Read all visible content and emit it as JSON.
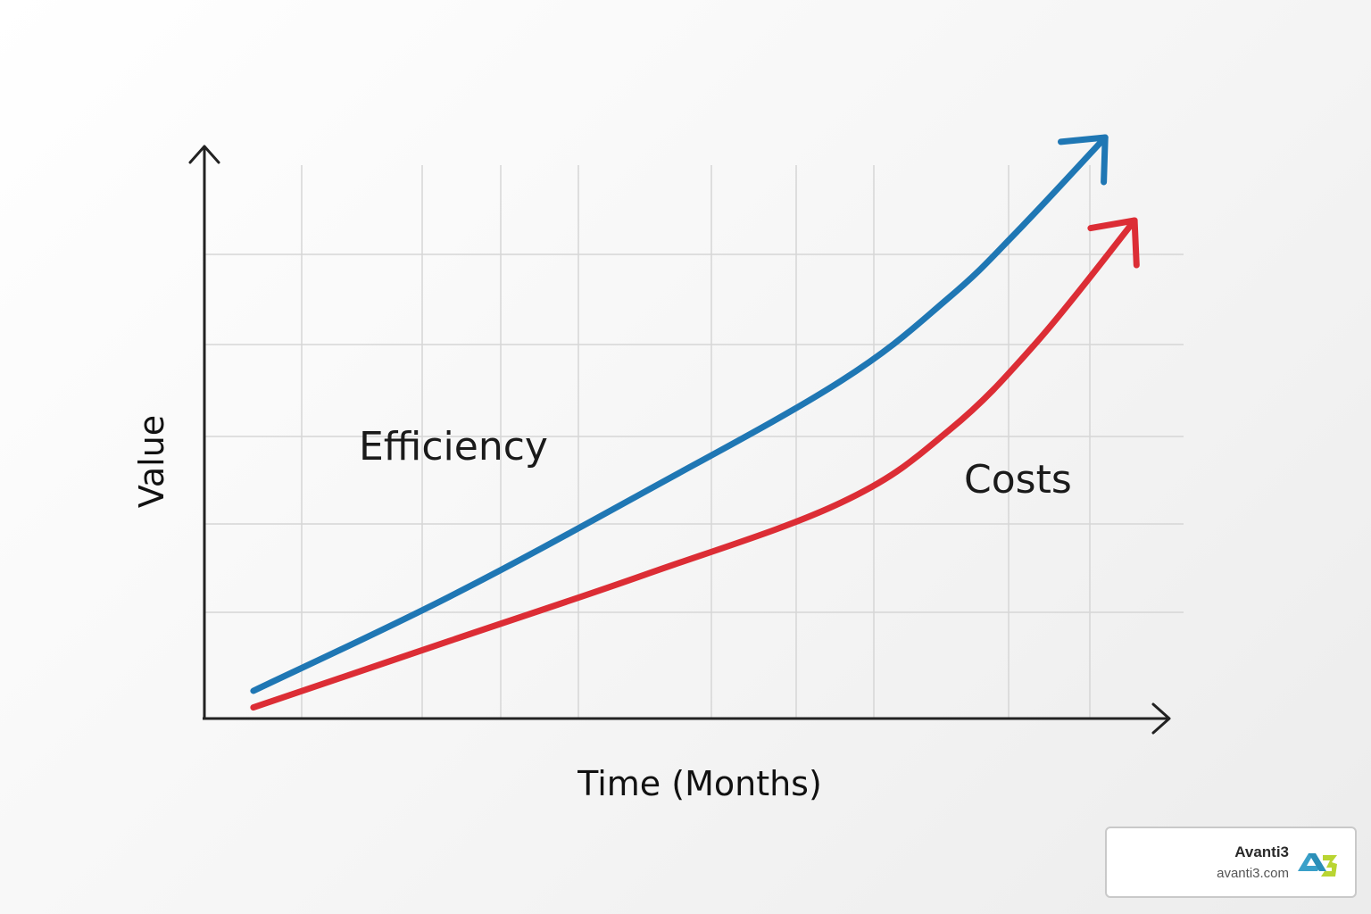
{
  "chart_data": {
    "type": "line",
    "xlabel": "Time (Months)",
    "ylabel": "Value",
    "grid": true,
    "xlim": [
      0,
      10
    ],
    "ylim": [
      0,
      10
    ],
    "series": [
      {
        "name": "Efficiency",
        "color": "#1f77b4",
        "x": [
          0.5,
          2.5,
          4.5,
          6.5,
          7.6,
          8.3,
          9.2
        ],
        "y": [
          0.5,
          2.2,
          4.1,
          6.1,
          7.6,
          8.8,
          10.5
        ]
      },
      {
        "name": "Costs",
        "color": "#dc2d35",
        "x": [
          0.5,
          2.5,
          4.5,
          6.5,
          7.6,
          8.5,
          9.5
        ],
        "y": [
          0.2,
          1.4,
          2.6,
          3.9,
          5.2,
          6.8,
          9.0
        ]
      }
    ]
  },
  "badge": {
    "name": "Avanti3",
    "url": "avanti3.com",
    "logo_icon": "avanti3-logo-icon"
  }
}
